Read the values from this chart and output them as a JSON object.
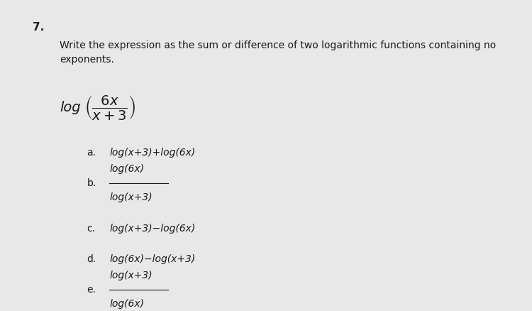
{
  "background_color": "#e8e8e8",
  "text_color": "#1a1a1a",
  "question_number": "7.",
  "question_text": "Write the expression as the sum or difference of two logarithmic functions containing no\nexponents.",
  "log_expression_numerator": "6x",
  "log_expression_denominator": "x+3",
  "options": [
    {
      "label": "a.",
      "text": "log(x+3)+log(6x)",
      "fraction": false,
      "italic": true
    },
    {
      "label": "b.",
      "numerator": "log(6x)",
      "denominator": "log(x+3)",
      "fraction": true,
      "italic": true
    },
    {
      "label": "c.",
      "text": "log(x+3)−log(6x)",
      "fraction": false,
      "italic": true
    },
    {
      "label": "d.",
      "text": "log(6x)−log(x+3)",
      "fraction": false,
      "italic": true
    },
    {
      "label": "e.",
      "numerator": "log(x+3)",
      "denominator": "log(6x)",
      "fraction": true,
      "italic": true
    }
  ],
  "font_size_question_num": 11,
  "font_size_body": 10,
  "font_size_options": 10,
  "font_size_log_expr": 11
}
